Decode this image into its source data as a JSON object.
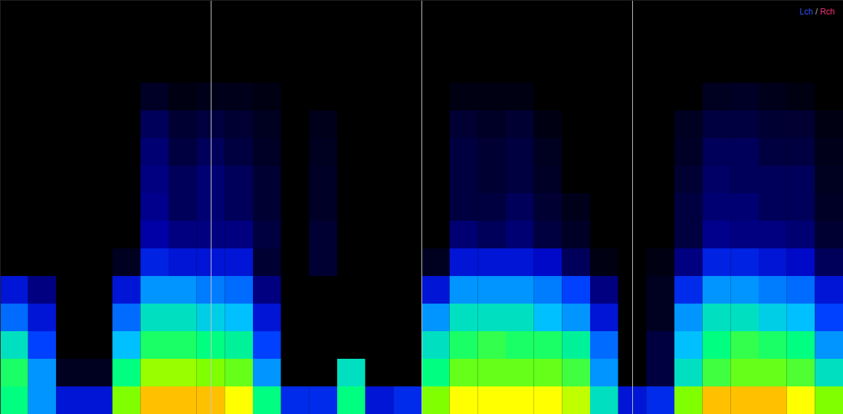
{
  "chart_data": {
    "type": "heatmap",
    "xlim": [
      0,
      30
    ],
    "ylim": [
      0,
      15
    ],
    "zlim": [
      0,
      100
    ],
    "tick_labels": false,
    "markers": [
      7.5,
      15,
      22.5
    ],
    "legend": "top-right",
    "legend_separator": "/",
    "series": [
      {
        "name": "Lch",
        "color": "#3050e0"
      },
      {
        "name": "Rch",
        "color": "#e03070"
      }
    ],
    "values": [
      [
        60,
        45,
        25,
        25,
        70,
        85,
        85,
        85,
        80,
        60,
        30,
        30,
        60,
        25,
        30,
        70,
        80,
        80,
        80,
        80,
        75,
        55,
        25,
        30,
        70,
        85,
        85,
        85,
        80,
        70
      ],
      [
        62,
        45,
        5,
        5,
        60,
        72,
        72,
        70,
        68,
        45,
        0,
        0,
        55,
        0,
        0,
        60,
        68,
        68,
        68,
        68,
        65,
        45,
        0,
        10,
        55,
        65,
        68,
        68,
        66,
        55
      ],
      [
        55,
        35,
        0,
        0,
        50,
        62,
        62,
        60,
        58,
        35,
        0,
        0,
        0,
        0,
        0,
        55,
        62,
        64,
        62,
        62,
        58,
        40,
        0,
        10,
        50,
        60,
        64,
        62,
        60,
        45
      ],
      [
        40,
        25,
        0,
        0,
        40,
        55,
        55,
        52,
        50,
        25,
        0,
        0,
        0,
        0,
        0,
        45,
        55,
        55,
        55,
        50,
        45,
        25,
        0,
        5,
        45,
        55,
        55,
        52,
        50,
        35
      ],
      [
        25,
        15,
        0,
        0,
        25,
        45,
        45,
        42,
        40,
        15,
        0,
        0,
        0,
        0,
        0,
        25,
        45,
        45,
        45,
        42,
        35,
        15,
        0,
        5,
        30,
        45,
        45,
        42,
        40,
        25
      ],
      [
        0,
        0,
        0,
        0,
        5,
        28,
        25,
        25,
        25,
        8,
        0,
        8,
        0,
        0,
        0,
        5,
        25,
        25,
        25,
        22,
        12,
        3,
        0,
        3,
        15,
        28,
        28,
        25,
        22,
        12
      ],
      [
        0,
        0,
        0,
        0,
        0,
        18,
        15,
        15,
        15,
        10,
        0,
        8,
        0,
        0,
        0,
        0,
        14,
        12,
        14,
        10,
        6,
        0,
        0,
        0,
        10,
        16,
        15,
        15,
        14,
        8
      ],
      [
        0,
        0,
        0,
        0,
        0,
        16,
        12,
        14,
        12,
        8,
        0,
        6,
        0,
        0,
        0,
        0,
        10,
        10,
        12,
        8,
        4,
        0,
        0,
        0,
        10,
        14,
        14,
        12,
        12,
        6
      ],
      [
        0,
        0,
        0,
        0,
        0,
        15,
        12,
        14,
        12,
        8,
        0,
        6,
        0,
        0,
        0,
        0,
        10,
        8,
        10,
        6,
        0,
        0,
        0,
        0,
        8,
        13,
        12,
        12,
        12,
        5
      ],
      [
        0,
        0,
        0,
        0,
        0,
        14,
        10,
        12,
        10,
        6,
        0,
        5,
        0,
        0,
        0,
        0,
        10,
        8,
        10,
        5,
        0,
        0,
        0,
        0,
        6,
        12,
        12,
        10,
        10,
        4
      ],
      [
        0,
        0,
        0,
        0,
        0,
        12,
        8,
        10,
        8,
        5,
        0,
        4,
        0,
        0,
        0,
        0,
        8,
        6,
        8,
        3,
        0,
        0,
        0,
        0,
        5,
        10,
        10,
        8,
        8,
        3
      ],
      [
        0,
        0,
        0,
        0,
        0,
        6,
        3,
        4,
        4,
        3,
        0,
        0,
        0,
        0,
        0,
        0,
        3,
        3,
        3,
        0,
        0,
        0,
        0,
        0,
        0,
        5,
        6,
        4,
        3,
        0
      ],
      [
        0,
        0,
        0,
        0,
        0,
        0,
        0,
        0,
        0,
        0,
        0,
        0,
        0,
        0,
        0,
        0,
        0,
        0,
        0,
        0,
        0,
        0,
        0,
        0,
        0,
        0,
        0,
        0,
        0,
        0
      ],
      [
        0,
        0,
        0,
        0,
        0,
        0,
        0,
        0,
        0,
        0,
        0,
        0,
        0,
        0,
        0,
        0,
        0,
        0,
        0,
        0,
        0,
        0,
        0,
        0,
        0,
        0,
        0,
        0,
        0,
        0
      ],
      [
        0,
        0,
        0,
        0,
        0,
        0,
        0,
        0,
        0,
        0,
        0,
        0,
        0,
        0,
        0,
        0,
        0,
        0,
        0,
        0,
        0,
        0,
        0,
        0,
        0,
        0,
        0,
        0,
        0,
        0
      ]
    ]
  }
}
